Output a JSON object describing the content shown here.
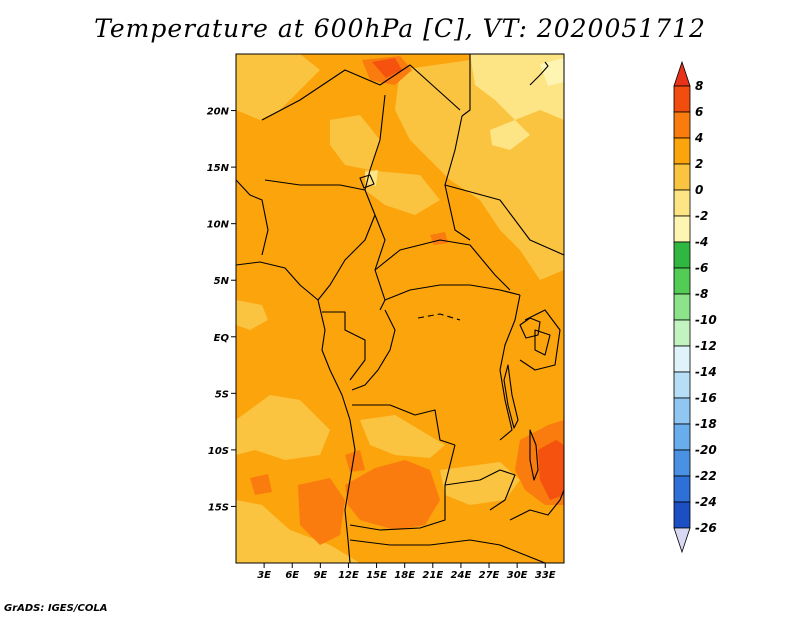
{
  "title": "Temperature at 600hPa [C], VT: 2020051712",
  "credit": "GrADS: IGES/COLA",
  "map": {
    "lon_range": [
      0,
      35
    ],
    "lat_range": [
      -20,
      25
    ],
    "lat_ticks": [
      {
        "lat": 20,
        "label": "20N"
      },
      {
        "lat": 15,
        "label": "15N"
      },
      {
        "lat": 10,
        "label": "10N"
      },
      {
        "lat": 5,
        "label": "5N"
      },
      {
        "lat": 0,
        "label": "EQ"
      },
      {
        "lat": -5,
        "label": "5S"
      },
      {
        "lat": -10,
        "label": "10S"
      },
      {
        "lat": -15,
        "label": "15S"
      }
    ],
    "lon_ticks": [
      {
        "lon": 3,
        "label": "3E"
      },
      {
        "lon": 6,
        "label": "6E"
      },
      {
        "lon": 9,
        "label": "9E"
      },
      {
        "lon": 12,
        "label": "12E"
      },
      {
        "lon": 15,
        "label": "15E"
      },
      {
        "lon": 18,
        "label": "18E"
      },
      {
        "lon": 21,
        "label": "21E"
      },
      {
        "lon": 24,
        "label": "24E"
      },
      {
        "lon": 27,
        "label": "27E"
      },
      {
        "lon": 30,
        "label": "30E"
      },
      {
        "lon": 33,
        "label": "33E"
      }
    ],
    "background_color": "#fca40c",
    "field_colors": {
      "warm_2_4": "#fca40c",
      "warm_4_6": "#fa7b0e",
      "warm_6_8": "#f5520f",
      "mild_0_2": "#fbc440",
      "cool_-2_0": "#fde484",
      "cold_-4_-2": "#fff5b3"
    }
  },
  "colorbar": {
    "levels": [
      {
        "label": "8",
        "color": "#f14d0f"
      },
      {
        "label": "6",
        "color": "#fa7b0e"
      },
      {
        "label": "4",
        "color": "#fca40c"
      },
      {
        "label": "2",
        "color": "#fbc440"
      },
      {
        "label": "0",
        "color": "#fde484"
      },
      {
        "label": "-2",
        "color": "#fff5b3"
      },
      {
        "label": "-4",
        "color": "#2fb742"
      },
      {
        "label": "-6",
        "color": "#52cc54"
      },
      {
        "label": "-8",
        "color": "#8ce38a"
      },
      {
        "label": "-10",
        "color": "#c2f4c0"
      },
      {
        "label": "-12",
        "color": "#e0f3fb"
      },
      {
        "label": "-14",
        "color": "#b6def6"
      },
      {
        "label": "-16",
        "color": "#8fc6f2"
      },
      {
        "label": "-18",
        "color": "#69adec"
      },
      {
        "label": "-20",
        "color": "#4a91e4"
      },
      {
        "label": "-22",
        "color": "#2e6fd8"
      },
      {
        "label": "-24",
        "color": "#1b4fc3"
      },
      {
        "label": "-26",
        "color": "#0e2c8e"
      }
    ],
    "top_triangle_color": "#e8331a",
    "bottom_triangle_color": "#d8d8f2",
    "last_band_color": "#07146b"
  }
}
